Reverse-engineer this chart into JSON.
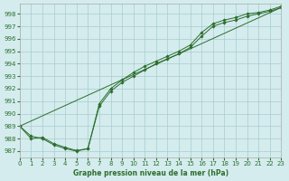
{
  "title": "Graphe pression niveau de la mer (hPa)",
  "background_color": "#d4ecee",
  "grid_color": "#a8cccc",
  "line_color": "#2d6e2d",
  "marker_color": "#2d6e2d",
  "xlim": [
    0,
    23
  ],
  "ylim": [
    986.5,
    998.8
  ],
  "yticks": [
    987,
    988,
    989,
    990,
    991,
    992,
    993,
    994,
    995,
    996,
    997,
    998
  ],
  "xticks": [
    0,
    1,
    2,
    3,
    4,
    5,
    6,
    7,
    8,
    9,
    10,
    11,
    12,
    13,
    14,
    15,
    16,
    17,
    18,
    19,
    20,
    21,
    22,
    23
  ],
  "series1_x": [
    0,
    1,
    2,
    3,
    4,
    5,
    6,
    7,
    8,
    9,
    10,
    11,
    12,
    13,
    14,
    15,
    16,
    17,
    18,
    19,
    20,
    21,
    22,
    23
  ],
  "series1_y": [
    989.0,
    988.2,
    988.0,
    987.5,
    987.2,
    987.0,
    987.2,
    990.6,
    991.8,
    992.5,
    993.0,
    993.5,
    994.0,
    994.4,
    994.8,
    995.3,
    996.2,
    997.0,
    997.3,
    997.5,
    997.8,
    998.0,
    998.2,
    998.5
  ],
  "series2_x": [
    0,
    1,
    2,
    3,
    4,
    5,
    6,
    7,
    8,
    9,
    10,
    11,
    12,
    13,
    14,
    15,
    16,
    17,
    18,
    19,
    20,
    21,
    22,
    23
  ],
  "series2_y": [
    989.0,
    988.0,
    988.1,
    987.6,
    987.3,
    987.05,
    987.2,
    990.8,
    992.0,
    992.7,
    993.3,
    993.8,
    994.2,
    994.6,
    995.0,
    995.5,
    996.5,
    997.2,
    997.5,
    997.7,
    998.0,
    998.1,
    998.3,
    998.6
  ],
  "series3_x": [
    0,
    23
  ],
  "series3_y": [
    989.0,
    998.5
  ]
}
